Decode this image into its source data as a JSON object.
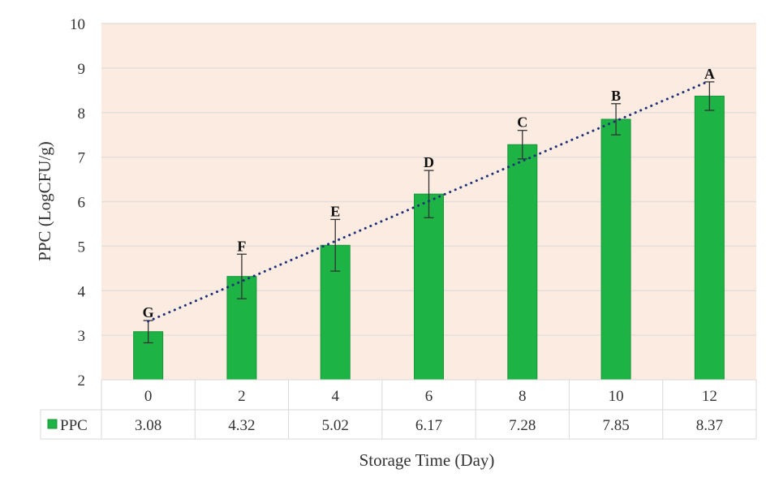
{
  "chart_data": {
    "type": "bar",
    "xlabel": "Storage Time (Day)",
    "ylabel": "PPC (LogCFU/g)",
    "ylim": [
      2,
      10
    ],
    "yticks": [
      2,
      3,
      4,
      5,
      6,
      7,
      8,
      9,
      10
    ],
    "grid": true,
    "categories": [
      "0",
      "2",
      "4",
      "6",
      "8",
      "10",
      "12"
    ],
    "series": [
      {
        "name": "PPC",
        "values": [
          3.08,
          4.32,
          5.02,
          6.17,
          7.28,
          7.85,
          8.37
        ],
        "error": [
          0.25,
          0.5,
          0.58,
          0.53,
          0.32,
          0.35,
          0.32
        ],
        "significance_letters": [
          "G",
          "F",
          "E",
          "D",
          "C",
          "B",
          "A"
        ],
        "color": "#1db345"
      }
    ],
    "trendline": {
      "type": "linear",
      "style": "dotted",
      "color": "#1f2f7a"
    },
    "legend": "data-table",
    "plot_background": "#fbebe1"
  }
}
